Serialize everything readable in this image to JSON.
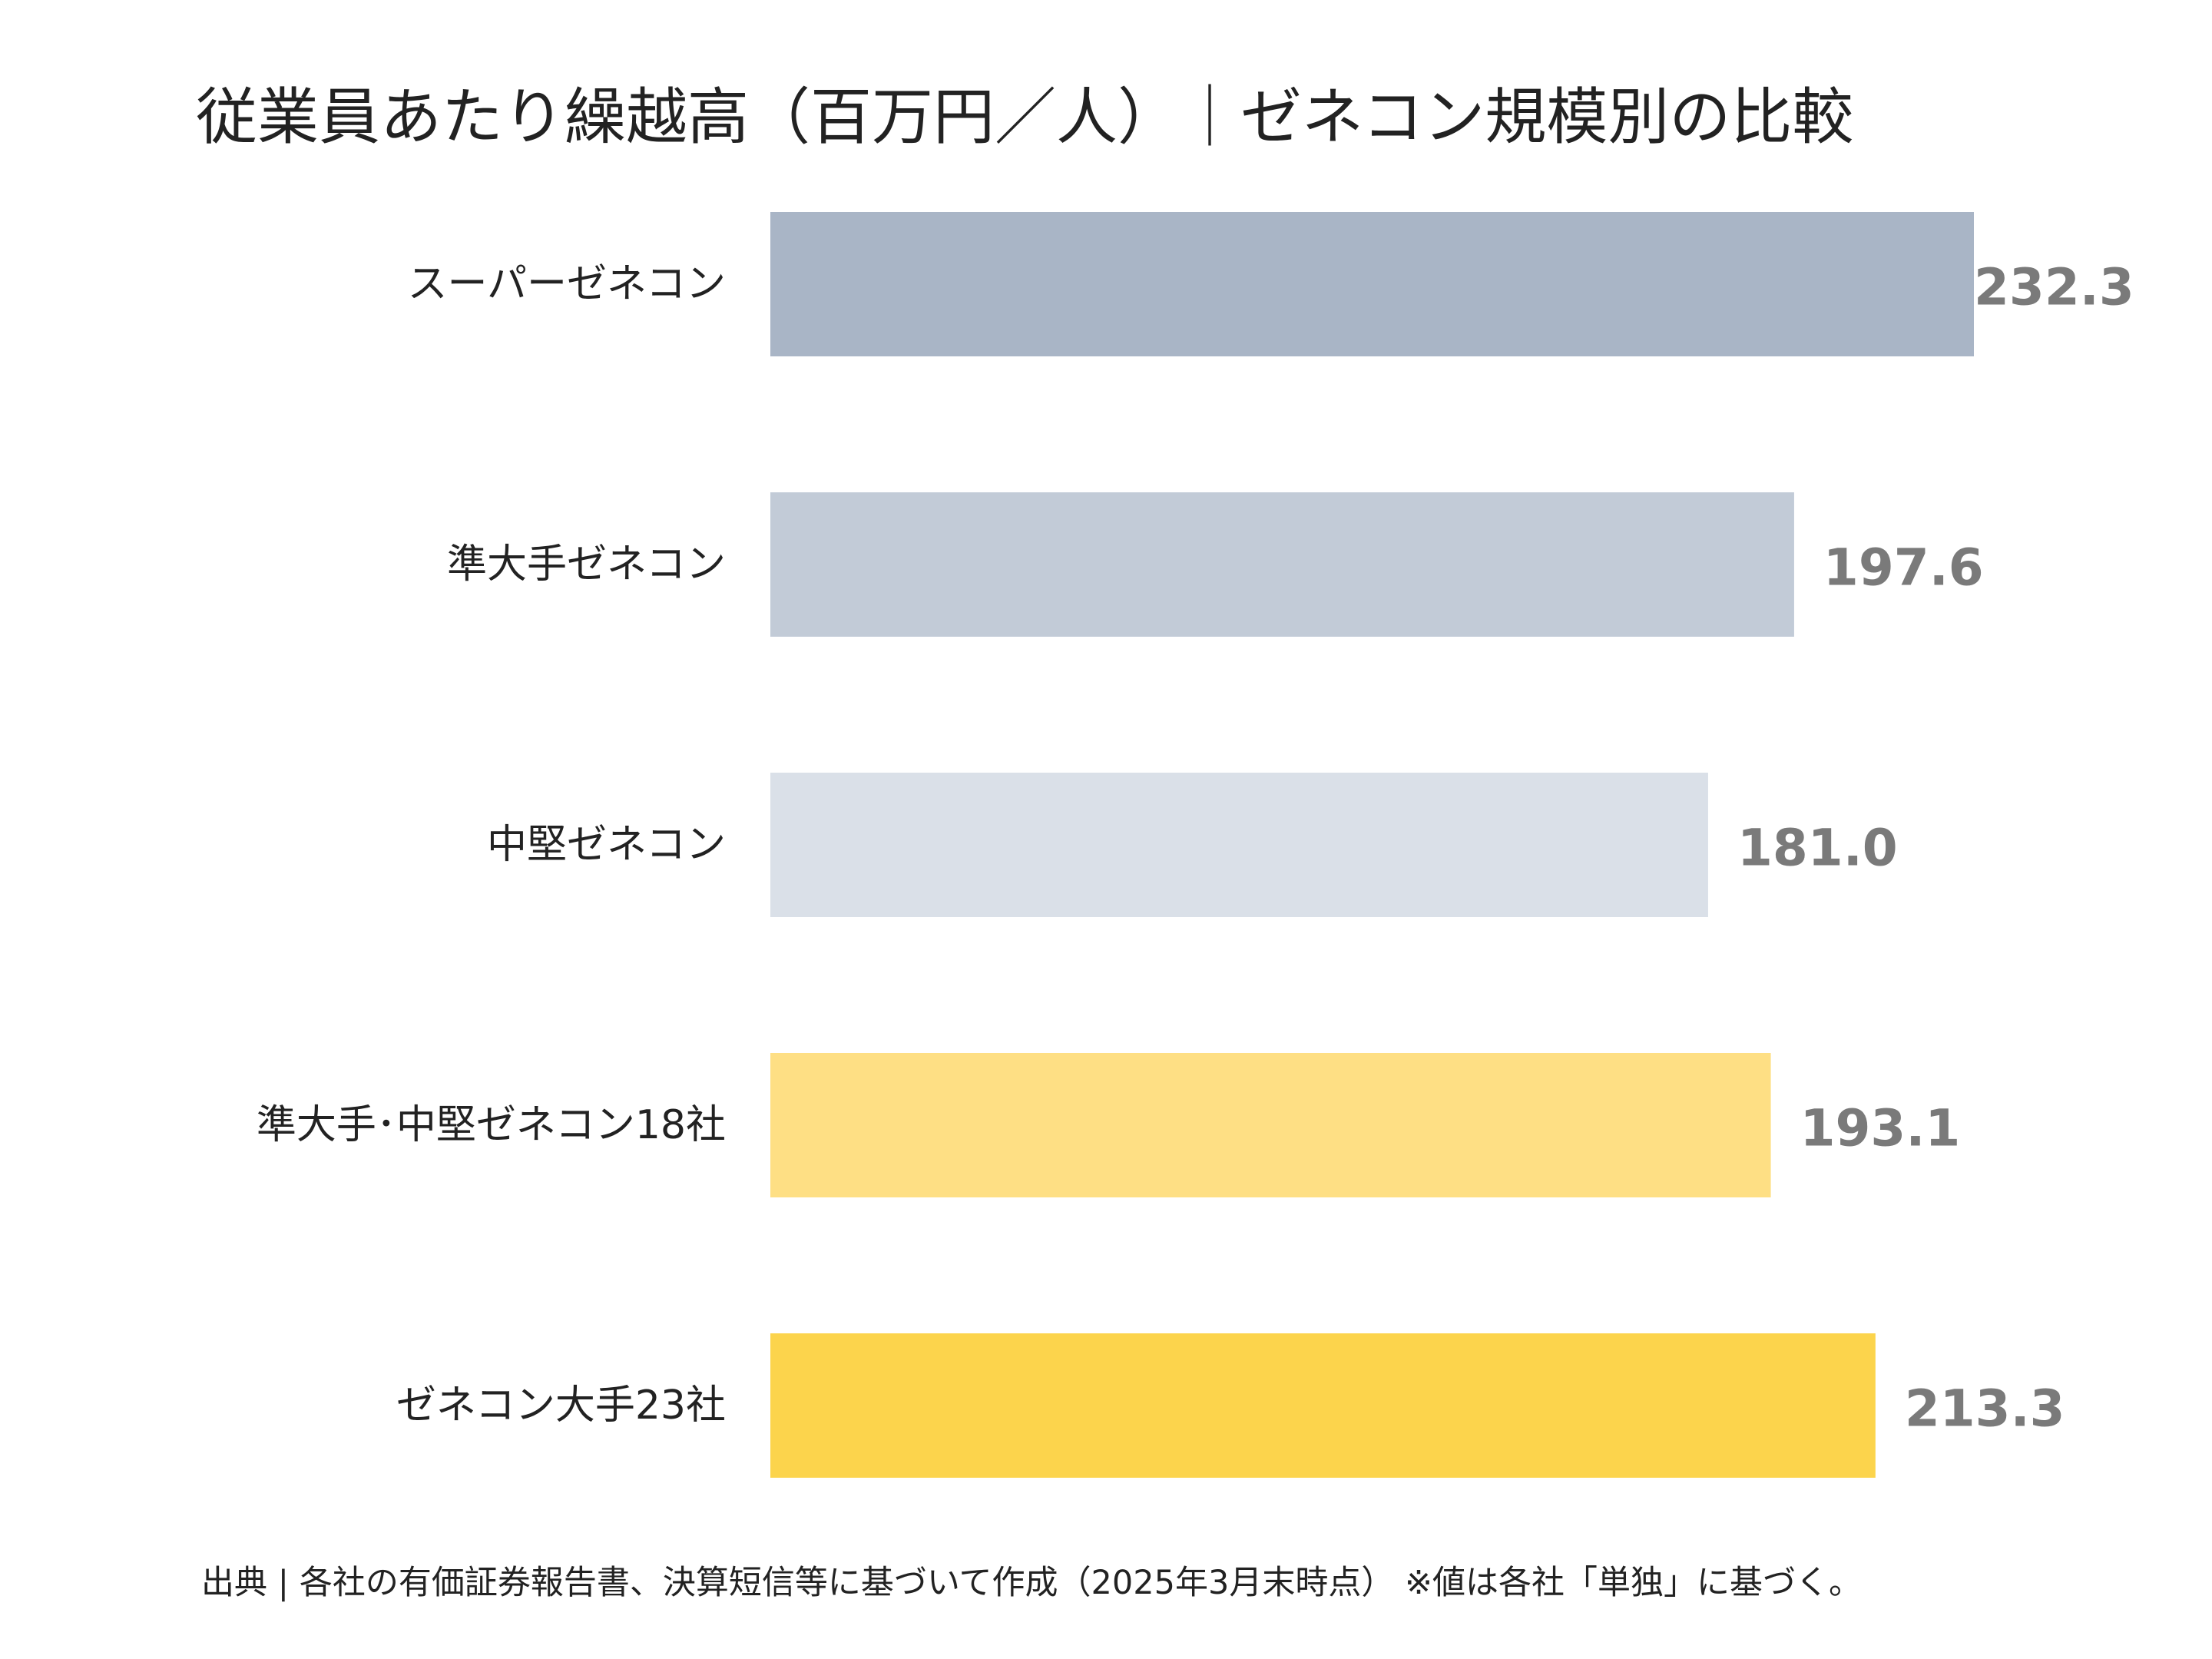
{
  "chart_data": {
    "type": "bar",
    "orientation": "horizontal",
    "title": "従業員あたり繰越高（百万円／人）｜ゼネコン規模別の比較",
    "categories": [
      "スーパーゼネコン",
      "準大手ゼネコン",
      "中堅ゼネコン",
      "準大手･中堅ゼネコン18社",
      "ゼネコン大手23社"
    ],
    "values": [
      232.3,
      197.6,
      181.0,
      193.1,
      213.3
    ],
    "value_labels": [
      "232.3",
      "197.6",
      "181.0",
      "193.1",
      "213.3"
    ],
    "colors": [
      "#a9b5c6",
      "#c2cbd7",
      "#dae0e8",
      "#fedf84",
      "#fcd44c"
    ],
    "value_label_color": "#7a7a7a",
    "xlim": [
      0,
      232.3
    ],
    "grid": false,
    "legend": "none"
  },
  "source_note": "出典 | 各社の有価証券報告書、決算短信等に基づいて作成（2025年3月末時点） ※値は各社「単独」に基づく。"
}
